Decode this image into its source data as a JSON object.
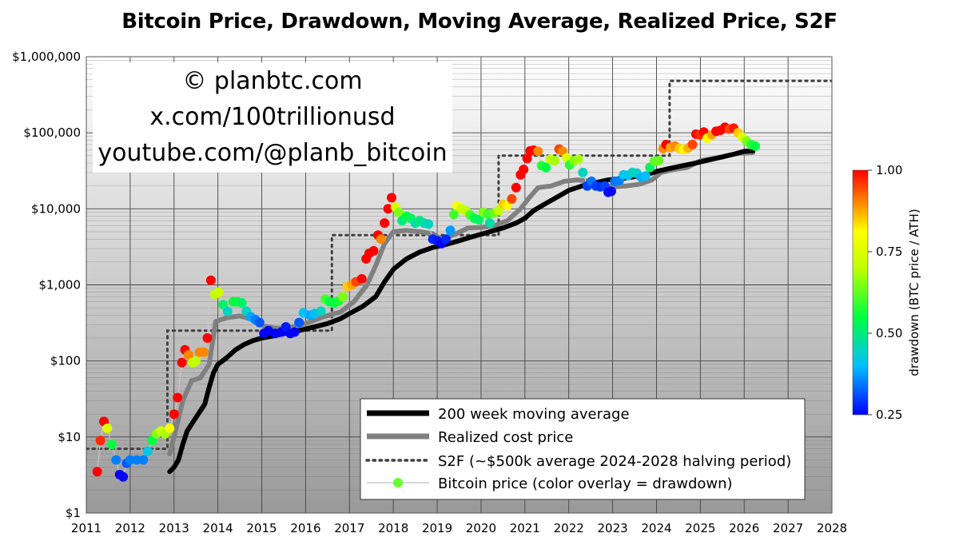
{
  "chart_data": {
    "type": "scatter",
    "title": "Bitcoin Price, Drawdown, Moving Average, Realized Price, S2F",
    "watermark": [
      "© planbtc.com",
      "x.com/100trillionusd",
      "youtube.com/@planb_bitcoin"
    ],
    "y_scale": "log",
    "ylim": [
      1,
      1000000
    ],
    "xlim": [
      2011,
      2028
    ],
    "y_ticks": [
      {
        "value": 1,
        "label": "$1"
      },
      {
        "value": 10,
        "label": "$10"
      },
      {
        "value": 100,
        "label": "$100"
      },
      {
        "value": 1000,
        "label": "$1,000"
      },
      {
        "value": 10000,
        "label": "$10,000"
      },
      {
        "value": 100000,
        "label": "$100,000"
      },
      {
        "value": 1000000,
        "label": "$1,000,000"
      }
    ],
    "x_ticks": [
      "2011",
      "2012",
      "2013",
      "2014",
      "2015",
      "2016",
      "2017",
      "2018",
      "2019",
      "2020",
      "2021",
      "2022",
      "2023",
      "2024",
      "2025",
      "2026",
      "2027",
      "2028"
    ],
    "grid": true,
    "legend_position": "bottom-right",
    "colors": {
      "ma200": "#000000",
      "realized": "#808080",
      "s2f": "#404040",
      "price_line": "#c8c8c8",
      "legend_marker": "#66ff33"
    },
    "colorbar": {
      "label": "drawdown (BTC price / ATH)",
      "min": 0.25,
      "max": 1.0,
      "ticks": [
        {
          "value": 1.0,
          "label": "1.00"
        },
        {
          "value": 0.75,
          "label": "0.75"
        },
        {
          "value": 0.5,
          "label": "0.50"
        },
        {
          "value": 0.25,
          "label": "0.25"
        }
      ]
    },
    "legend": [
      {
        "key": "ma200",
        "label": "200 week moving average"
      },
      {
        "key": "realized",
        "label": "Realized cost price"
      },
      {
        "key": "s2f",
        "label": "S2F (~$500k average 2024-2028 halving period)"
      },
      {
        "key": "price",
        "label": "Bitcoin price (color overlay = drawdown)"
      }
    ],
    "series": [
      {
        "key": "ma200",
        "x": [
          2012.9,
          2013.0,
          2013.1,
          2013.2,
          2013.3,
          2013.5,
          2013.7,
          2013.8,
          2013.9,
          2014.0,
          2014.2,
          2014.4,
          2014.6,
          2014.8,
          2015.0,
          2015.3,
          2015.6,
          2015.9,
          2016.2,
          2016.5,
          2016.8,
          2017.0,
          2017.3,
          2017.6,
          2017.8,
          2018.0,
          2018.3,
          2018.6,
          2018.9,
          2019.2,
          2019.5,
          2019.8,
          2020.2,
          2020.5,
          2020.8,
          2021.0,
          2021.2,
          2021.5,
          2021.8,
          2022.0,
          2022.3,
          2022.6,
          2022.9,
          2023.2,
          2023.5,
          2023.8,
          2024.0,
          2024.3,
          2024.6,
          2024.9,
          2025.2,
          2025.5,
          2025.8,
          2026.0,
          2026.2
        ],
        "y": [
          3.5,
          4,
          5,
          8,
          12,
          18,
          27,
          45,
          70,
          90,
          110,
          140,
          165,
          185,
          200,
          215,
          235,
          255,
          280,
          310,
          360,
          420,
          520,
          700,
          1100,
          1600,
          2200,
          2700,
          3100,
          3400,
          3800,
          4300,
          5000,
          5600,
          6500,
          7500,
          9500,
          12000,
          15000,
          17500,
          20000,
          22000,
          24000,
          25000,
          26500,
          28500,
          31000,
          34000,
          37000,
          40000,
          44000,
          48000,
          53000,
          57000,
          58000
        ]
      },
      {
        "key": "realized",
        "x": [
          2012.9,
          2013.0,
          2013.2,
          2013.4,
          2013.6,
          2013.8,
          2013.95,
          2014.2,
          2014.5,
          2014.8,
          2015.0,
          2015.3,
          2015.6,
          2016.0,
          2016.4,
          2016.8,
          2017.1,
          2017.4,
          2017.6,
          2017.8,
          2018.0,
          2018.3,
          2018.6,
          2018.9,
          2019.1,
          2019.4,
          2019.7,
          2020.0,
          2020.3,
          2020.6,
          2020.9,
          2021.1,
          2021.3,
          2021.6,
          2021.9,
          2022.2,
          2022.5,
          2022.8,
          2023.0,
          2023.3,
          2023.6,
          2023.9,
          2024.1,
          2024.4,
          2024.7,
          2025.0,
          2025.3,
          2025.6,
          2025.9,
          2026.2
        ],
        "y": [
          6,
          10,
          30,
          55,
          60,
          90,
          330,
          370,
          390,
          350,
          290,
          270,
          270,
          310,
          380,
          440,
          600,
          1000,
          1800,
          3500,
          5000,
          5200,
          5000,
          4700,
          4000,
          4600,
          5600,
          5700,
          6000,
          7000,
          10000,
          14000,
          19000,
          20000,
          23000,
          24000,
          23000,
          21000,
          19500,
          20000,
          21000,
          24000,
          30000,
          33000,
          35000,
          43000,
          46000,
          50000,
          54000,
          55000
        ]
      },
      {
        "key": "s2f",
        "x": [
          2011.0,
          2012.85,
          2012.85,
          2016.6,
          2016.6,
          2020.4,
          2020.4,
          2024.3,
          2024.3,
          2028.0
        ],
        "y": [
          7,
          7,
          250,
          250,
          4500,
          4500,
          50000,
          50000,
          480000,
          480000
        ]
      }
    ],
    "price_points": [
      {
        "x": 2011.25,
        "y": 3.5,
        "d": 1.0
      },
      {
        "x": 2011.32,
        "y": 9,
        "d": 0.97
      },
      {
        "x": 2011.4,
        "y": 16,
        "d": 1.0
      },
      {
        "x": 2011.48,
        "y": 13,
        "d": 0.75
      },
      {
        "x": 2011.58,
        "y": 8,
        "d": 0.55
      },
      {
        "x": 2011.68,
        "y": 5,
        "d": 0.35
      },
      {
        "x": 2011.76,
        "y": 3.2,
        "d": 0.25
      },
      {
        "x": 2011.84,
        "y": 3,
        "d": 0.25
      },
      {
        "x": 2011.92,
        "y": 4.5,
        "d": 0.32
      },
      {
        "x": 2012.0,
        "y": 5,
        "d": 0.35
      },
      {
        "x": 2012.15,
        "y": 5,
        "d": 0.35
      },
      {
        "x": 2012.3,
        "y": 5,
        "d": 0.35
      },
      {
        "x": 2012.4,
        "y": 6.5,
        "d": 0.42
      },
      {
        "x": 2012.5,
        "y": 9,
        "d": 0.55
      },
      {
        "x": 2012.6,
        "y": 11,
        "d": 0.65
      },
      {
        "x": 2012.7,
        "y": 12,
        "d": 0.72
      },
      {
        "x": 2012.8,
        "y": 11,
        "d": 0.68
      },
      {
        "x": 2012.9,
        "y": 13,
        "d": 0.8
      },
      {
        "x": 2013.0,
        "y": 20,
        "d": 1.0
      },
      {
        "x": 2013.08,
        "y": 33,
        "d": 1.0
      },
      {
        "x": 2013.18,
        "y": 95,
        "d": 1.0
      },
      {
        "x": 2013.25,
        "y": 140,
        "d": 1.0
      },
      {
        "x": 2013.33,
        "y": 120,
        "d": 0.9
      },
      {
        "x": 2013.42,
        "y": 95,
        "d": 0.7
      },
      {
        "x": 2013.5,
        "y": 100,
        "d": 0.7
      },
      {
        "x": 2013.58,
        "y": 130,
        "d": 0.9
      },
      {
        "x": 2013.68,
        "y": 130,
        "d": 0.9
      },
      {
        "x": 2013.76,
        "y": 200,
        "d": 1.0
      },
      {
        "x": 2013.84,
        "y": 1150,
        "d": 1.0
      },
      {
        "x": 2013.93,
        "y": 750,
        "d": 0.7
      },
      {
        "x": 2014.02,
        "y": 800,
        "d": 0.72
      },
      {
        "x": 2014.12,
        "y": 550,
        "d": 0.52
      },
      {
        "x": 2014.22,
        "y": 450,
        "d": 0.45
      },
      {
        "x": 2014.35,
        "y": 600,
        "d": 0.55
      },
      {
        "x": 2014.45,
        "y": 600,
        "d": 0.55
      },
      {
        "x": 2014.55,
        "y": 580,
        "d": 0.52
      },
      {
        "x": 2014.65,
        "y": 450,
        "d": 0.45
      },
      {
        "x": 2014.75,
        "y": 380,
        "d": 0.38
      },
      {
        "x": 2014.85,
        "y": 350,
        "d": 0.35
      },
      {
        "x": 2014.95,
        "y": 320,
        "d": 0.32
      },
      {
        "x": 2015.05,
        "y": 230,
        "d": 0.25
      },
      {
        "x": 2015.15,
        "y": 250,
        "d": 0.25
      },
      {
        "x": 2015.3,
        "y": 230,
        "d": 0.25
      },
      {
        "x": 2015.45,
        "y": 240,
        "d": 0.25
      },
      {
        "x": 2015.55,
        "y": 280,
        "d": 0.27
      },
      {
        "x": 2015.65,
        "y": 230,
        "d": 0.25
      },
      {
        "x": 2015.75,
        "y": 240,
        "d": 0.25
      },
      {
        "x": 2015.85,
        "y": 320,
        "d": 0.32
      },
      {
        "x": 2015.95,
        "y": 430,
        "d": 0.4
      },
      {
        "x": 2016.1,
        "y": 400,
        "d": 0.38
      },
      {
        "x": 2016.2,
        "y": 420,
        "d": 0.4
      },
      {
        "x": 2016.35,
        "y": 450,
        "d": 0.45
      },
      {
        "x": 2016.45,
        "y": 650,
        "d": 0.6
      },
      {
        "x": 2016.55,
        "y": 600,
        "d": 0.55
      },
      {
        "x": 2016.65,
        "y": 580,
        "d": 0.55
      },
      {
        "x": 2016.75,
        "y": 610,
        "d": 0.57
      },
      {
        "x": 2016.85,
        "y": 700,
        "d": 0.65
      },
      {
        "x": 2016.95,
        "y": 950,
        "d": 0.85
      },
      {
        "x": 2017.05,
        "y": 1000,
        "d": 0.88
      },
      {
        "x": 2017.15,
        "y": 1100,
        "d": 0.95
      },
      {
        "x": 2017.28,
        "y": 1200,
        "d": 1.0
      },
      {
        "x": 2017.38,
        "y": 2200,
        "d": 1.0
      },
      {
        "x": 2017.45,
        "y": 2600,
        "d": 1.0
      },
      {
        "x": 2017.55,
        "y": 2800,
        "d": 1.0
      },
      {
        "x": 2017.65,
        "y": 4500,
        "d": 1.0
      },
      {
        "x": 2017.72,
        "y": 4000,
        "d": 0.9
      },
      {
        "x": 2017.8,
        "y": 6500,
        "d": 1.0
      },
      {
        "x": 2017.88,
        "y": 10000,
        "d": 1.0
      },
      {
        "x": 2017.96,
        "y": 14000,
        "d": 1.0
      },
      {
        "x": 2018.05,
        "y": 10500,
        "d": 0.75
      },
      {
        "x": 2018.12,
        "y": 9000,
        "d": 0.65
      },
      {
        "x": 2018.2,
        "y": 7000,
        "d": 0.5
      },
      {
        "x": 2018.3,
        "y": 8000,
        "d": 0.55
      },
      {
        "x": 2018.4,
        "y": 7500,
        "d": 0.53
      },
      {
        "x": 2018.5,
        "y": 6500,
        "d": 0.47
      },
      {
        "x": 2018.6,
        "y": 7000,
        "d": 0.5
      },
      {
        "x": 2018.7,
        "y": 6500,
        "d": 0.47
      },
      {
        "x": 2018.8,
        "y": 6300,
        "d": 0.45
      },
      {
        "x": 2018.9,
        "y": 4000,
        "d": 0.28
      },
      {
        "x": 2019.0,
        "y": 3800,
        "d": 0.27
      },
      {
        "x": 2019.1,
        "y": 3500,
        "d": 0.25
      },
      {
        "x": 2019.2,
        "y": 4000,
        "d": 0.28
      },
      {
        "x": 2019.3,
        "y": 5200,
        "d": 0.37
      },
      {
        "x": 2019.38,
        "y": 8500,
        "d": 0.6
      },
      {
        "x": 2019.45,
        "y": 11000,
        "d": 0.8
      },
      {
        "x": 2019.55,
        "y": 10000,
        "d": 0.72
      },
      {
        "x": 2019.65,
        "y": 9500,
        "d": 0.7
      },
      {
        "x": 2019.75,
        "y": 8300,
        "d": 0.6
      },
      {
        "x": 2019.85,
        "y": 7500,
        "d": 0.55
      },
      {
        "x": 2019.95,
        "y": 7200,
        "d": 0.52
      },
      {
        "x": 2020.05,
        "y": 9000,
        "d": 0.65
      },
      {
        "x": 2020.15,
        "y": 8500,
        "d": 0.6
      },
      {
        "x": 2020.2,
        "y": 6500,
        "d": 0.47
      },
      {
        "x": 2020.3,
        "y": 8800,
        "d": 0.63
      },
      {
        "x": 2020.4,
        "y": 9500,
        "d": 0.7
      },
      {
        "x": 2020.5,
        "y": 11500,
        "d": 0.85
      },
      {
        "x": 2020.6,
        "y": 11000,
        "d": 0.82
      },
      {
        "x": 2020.7,
        "y": 13500,
        "d": 0.95
      },
      {
        "x": 2020.8,
        "y": 19000,
        "d": 1.0
      },
      {
        "x": 2020.9,
        "y": 28000,
        "d": 1.0
      },
      {
        "x": 2020.97,
        "y": 33000,
        "d": 1.0
      },
      {
        "x": 2021.05,
        "y": 46000,
        "d": 1.0
      },
      {
        "x": 2021.12,
        "y": 58000,
        "d": 1.0
      },
      {
        "x": 2021.2,
        "y": 59000,
        "d": 1.0
      },
      {
        "x": 2021.3,
        "y": 57000,
        "d": 0.9
      },
      {
        "x": 2021.38,
        "y": 37000,
        "d": 0.58
      },
      {
        "x": 2021.48,
        "y": 35000,
        "d": 0.55
      },
      {
        "x": 2021.58,
        "y": 45000,
        "d": 0.7
      },
      {
        "x": 2021.68,
        "y": 43000,
        "d": 0.68
      },
      {
        "x": 2021.78,
        "y": 61000,
        "d": 0.95
      },
      {
        "x": 2021.86,
        "y": 57000,
        "d": 0.9
      },
      {
        "x": 2021.95,
        "y": 47000,
        "d": 0.75
      },
      {
        "x": 2022.02,
        "y": 38000,
        "d": 0.58
      },
      {
        "x": 2022.12,
        "y": 43000,
        "d": 0.65
      },
      {
        "x": 2022.22,
        "y": 45000,
        "d": 0.68
      },
      {
        "x": 2022.32,
        "y": 30000,
        "d": 0.45
      },
      {
        "x": 2022.42,
        "y": 20000,
        "d": 0.3
      },
      {
        "x": 2022.52,
        "y": 23000,
        "d": 0.34
      },
      {
        "x": 2022.62,
        "y": 20000,
        "d": 0.3
      },
      {
        "x": 2022.72,
        "y": 19500,
        "d": 0.29
      },
      {
        "x": 2022.82,
        "y": 20000,
        "d": 0.3
      },
      {
        "x": 2022.9,
        "y": 16500,
        "d": 0.25
      },
      {
        "x": 2022.97,
        "y": 17000,
        "d": 0.25
      },
      {
        "x": 2023.05,
        "y": 23000,
        "d": 0.34
      },
      {
        "x": 2023.15,
        "y": 23500,
        "d": 0.35
      },
      {
        "x": 2023.25,
        "y": 28000,
        "d": 0.42
      },
      {
        "x": 2023.35,
        "y": 27500,
        "d": 0.41
      },
      {
        "x": 2023.45,
        "y": 30000,
        "d": 0.45
      },
      {
        "x": 2023.55,
        "y": 29500,
        "d": 0.44
      },
      {
        "x": 2023.65,
        "y": 26000,
        "d": 0.39
      },
      {
        "x": 2023.75,
        "y": 27000,
        "d": 0.4
      },
      {
        "x": 2023.85,
        "y": 35000,
        "d": 0.52
      },
      {
        "x": 2023.95,
        "y": 42000,
        "d": 0.62
      },
      {
        "x": 2024.05,
        "y": 43000,
        "d": 0.63
      },
      {
        "x": 2024.15,
        "y": 62000,
        "d": 0.9
      },
      {
        "x": 2024.22,
        "y": 70000,
        "d": 1.0
      },
      {
        "x": 2024.32,
        "y": 64000,
        "d": 0.88
      },
      {
        "x": 2024.42,
        "y": 67000,
        "d": 0.9
      },
      {
        "x": 2024.52,
        "y": 62000,
        "d": 0.85
      },
      {
        "x": 2024.62,
        "y": 60000,
        "d": 0.82
      },
      {
        "x": 2024.72,
        "y": 63000,
        "d": 0.87
      },
      {
        "x": 2024.82,
        "y": 70000,
        "d": 0.95
      },
      {
        "x": 2024.9,
        "y": 96000,
        "d": 1.0
      },
      {
        "x": 2024.98,
        "y": 94000,
        "d": 0.97
      },
      {
        "x": 2025.08,
        "y": 102000,
        "d": 1.0
      },
      {
        "x": 2025.16,
        "y": 85000,
        "d": 0.8
      },
      {
        "x": 2025.26,
        "y": 94000,
        "d": 0.88
      },
      {
        "x": 2025.36,
        "y": 105000,
        "d": 1.0
      },
      {
        "x": 2025.46,
        "y": 108000,
        "d": 1.0
      },
      {
        "x": 2025.56,
        "y": 118000,
        "d": 1.0
      },
      {
        "x": 2025.66,
        "y": 112000,
        "d": 0.95
      },
      {
        "x": 2025.76,
        "y": 115000,
        "d": 0.98
      },
      {
        "x": 2025.86,
        "y": 100000,
        "d": 0.85
      },
      {
        "x": 2025.95,
        "y": 88000,
        "d": 0.75
      },
      {
        "x": 2026.05,
        "y": 78000,
        "d": 0.65
      },
      {
        "x": 2026.15,
        "y": 70000,
        "d": 0.58
      },
      {
        "x": 2026.25,
        "y": 67000,
        "d": 0.55
      }
    ]
  }
}
